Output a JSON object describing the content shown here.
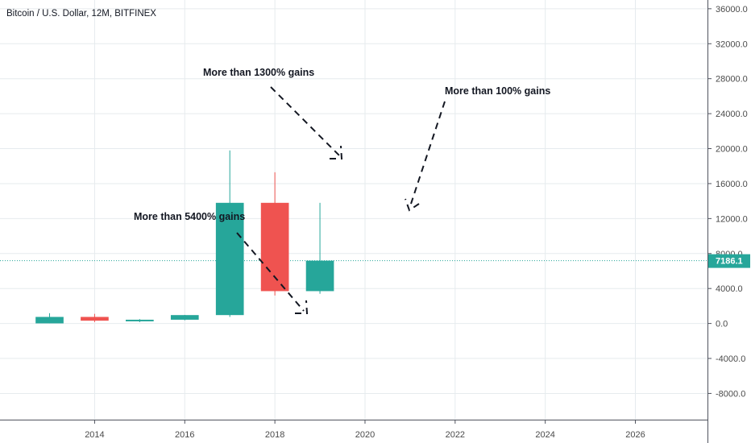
{
  "chart_data": {
    "type": "candlestick",
    "title": "Bitcoin / U.S. Dollar, 12M, BITFINEX",
    "x_ticks": [
      "2014",
      "2016",
      "2018",
      "2020",
      "2022",
      "2024",
      "2026"
    ],
    "y_ticks": [
      "36000.0",
      "32000.0",
      "28000.0",
      "24000.0",
      "20000.0",
      "16000.0",
      "12000.0",
      "8000.0",
      "4000.0",
      "0.0",
      "-4000.0",
      "-8000.0"
    ],
    "xlim": [
      2011.9,
      2027.6
    ],
    "ylim": [
      -11000,
      37000
    ],
    "current_price": 7186.1,
    "current_price_label": "7186.1",
    "candles": [
      {
        "year": 2013,
        "open": 13,
        "close": 750,
        "high": 1175,
        "low": 13
      },
      {
        "year": 2014,
        "open": 750,
        "close": 320,
        "high": 1100,
        "low": 160
      },
      {
        "year": 2015,
        "open": 320,
        "close": 430,
        "high": 500,
        "low": 150
      },
      {
        "year": 2016,
        "open": 430,
        "close": 960,
        "high": 980,
        "low": 360
      },
      {
        "year": 2017,
        "open": 960,
        "close": 13800,
        "high": 19800,
        "low": 750
      },
      {
        "year": 2018,
        "open": 13800,
        "close": 3700,
        "high": 17300,
        "low": 3200
      },
      {
        "year": 2019,
        "open": 3700,
        "close": 7186.1,
        "high": 13800,
        "low": 3400
      }
    ],
    "annotations": [
      {
        "text": "More than 5400% gains"
      },
      {
        "text": "More than 1300% gains"
      },
      {
        "text": "More than 100% gains"
      }
    ],
    "colors": {
      "up": "#26a69a",
      "down": "#ef5350",
      "grid": "#e6ebee",
      "axis": "#50535e",
      "price_line": "#26a69a"
    }
  }
}
